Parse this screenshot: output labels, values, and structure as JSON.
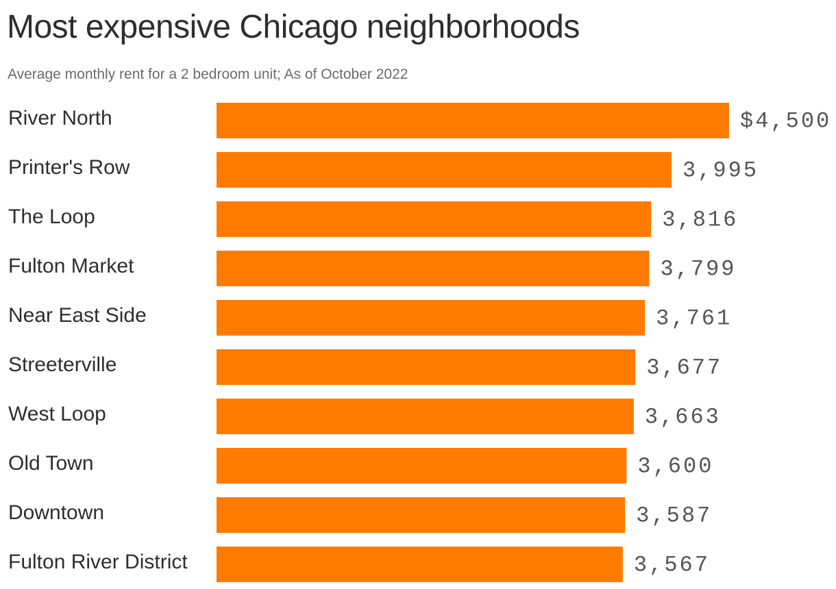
{
  "chart_data": {
    "type": "bar",
    "orientation": "horizontal",
    "title": "Most expensive Chicago neighborhoods",
    "subtitle": "Average monthly rent for a 2 bedroom unit; As of October 2022",
    "categories": [
      "River North",
      "Printer's Row",
      "The Loop",
      "Fulton Market",
      "Near East Side",
      "Streeterville",
      "West Loop",
      "Old Town",
      "Downtown",
      "Fulton River District"
    ],
    "values": [
      4500,
      3995,
      3816,
      3799,
      3761,
      3677,
      3663,
      3600,
      3587,
      3567
    ],
    "value_labels": [
      "$4,500",
      "3,995",
      "3,816",
      "3,799",
      "3,761",
      "3,677",
      "3,663",
      "3,600",
      "3,587",
      "3,567"
    ],
    "xlim": [
      0,
      4500
    ],
    "bar_color": "#ff7b00",
    "grid": false,
    "legend": "none"
  }
}
